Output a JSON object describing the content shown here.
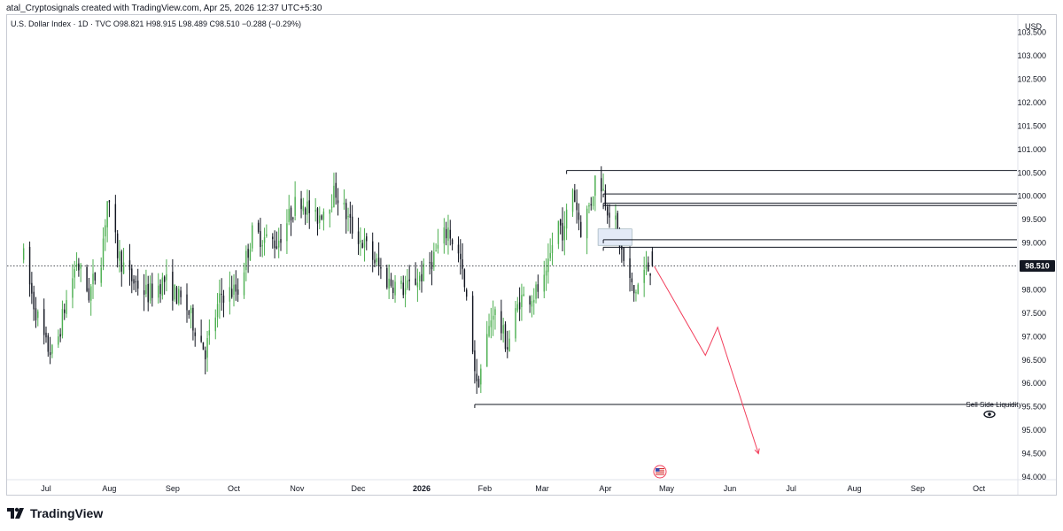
{
  "header": {
    "attribution": "atal_Cryptosignals created with TradingView.com, Apr 25, 2026 12:37 UTC+5:30"
  },
  "legend": {
    "text": "U.S. Dollar Index · 1D · TVC  O98.821  H98.915  L98.489  C98.510  −0.288 (−0.29%)"
  },
  "price_axis": {
    "currency": "USD",
    "last_price_label": "98.510"
  },
  "colors": {
    "up": "#4caf50",
    "down": "#131722",
    "level_line": "#131722",
    "projection": "#f23f5c",
    "zone_fill": "#e3eaf7",
    "last_price_bg": "#131722"
  },
  "annotations": {
    "sell_side_liquidity": "Sell Side Liquidity"
  },
  "brand": {
    "name": "TradingView"
  },
  "chart_data": {
    "type": "candlestick",
    "title": "U.S. Dollar Index · 1D · TVC",
    "ylim": [
      94.0,
      104.0
    ],
    "y_ticks": [
      "94.000",
      "94.500",
      "95.000",
      "95.500",
      "96.000",
      "96.500",
      "97.000",
      "97.500",
      "98.000",
      "98.500",
      "99.000",
      "99.500",
      "100.000",
      "100.500",
      "101.000",
      "101.500",
      "102.000",
      "102.500",
      "103.000",
      "103.500"
    ],
    "x_ticks": [
      "Jul",
      "Aug",
      "Sep",
      "Oct",
      "Nov",
      "Dec",
      "2026",
      "Feb",
      "Mar",
      "Apr",
      "May",
      "Jun",
      "Jul",
      "Aug",
      "Sep",
      "Oct"
    ],
    "ohlc_last": {
      "open": 98.821,
      "high": 98.915,
      "low": 98.489,
      "close": 98.51,
      "change": -0.288,
      "change_pct": -0.29
    },
    "close_path": [
      {
        "date": "Jun 20",
        "close": 98.7
      },
      {
        "date": "Jun 25",
        "close": 97.7
      },
      {
        "date": "Jul 1",
        "close": 96.8
      },
      {
        "date": "Jul 5",
        "close": 96.6
      },
      {
        "date": "Jul 10",
        "close": 97.6
      },
      {
        "date": "Jul 16",
        "close": 98.6
      },
      {
        "date": "Jul 22",
        "close": 97.9
      },
      {
        "date": "Jul 28",
        "close": 98.7
      },
      {
        "date": "Jul 31",
        "close": 99.9
      },
      {
        "date": "Aug 5",
        "close": 98.8
      },
      {
        "date": "Aug 10",
        "close": 98.3
      },
      {
        "date": "Aug 20",
        "close": 97.9
      },
      {
        "date": "Aug 28",
        "close": 98.2
      },
      {
        "date": "Sep 8",
        "close": 97.6
      },
      {
        "date": "Sep 17",
        "close": 96.7
      },
      {
        "date": "Sep 25",
        "close": 97.9
      },
      {
        "date": "Oct 3",
        "close": 98.0
      },
      {
        "date": "Oct 10",
        "close": 99.2
      },
      {
        "date": "Oct 22",
        "close": 99.0
      },
      {
        "date": "Nov 2",
        "close": 100.0
      },
      {
        "date": "Nov 10",
        "close": 99.5
      },
      {
        "date": "Nov 20",
        "close": 100.1
      },
      {
        "date": "Nov 28",
        "close": 99.3
      },
      {
        "date": "Dec 5",
        "close": 98.9
      },
      {
        "date": "Dec 15",
        "close": 98.2
      },
      {
        "date": "Dec 24",
        "close": 98.0
      },
      {
        "date": "Jan 3",
        "close": 98.4
      },
      {
        "date": "Jan 14",
        "close": 99.3
      },
      {
        "date": "Jan 20",
        "close": 98.6
      },
      {
        "date": "Jan 26",
        "close": 96.8
      },
      {
        "date": "Jan 28",
        "close": 95.9
      },
      {
        "date": "Feb 5",
        "close": 97.6
      },
      {
        "date": "Feb 12",
        "close": 96.8
      },
      {
        "date": "Feb 18",
        "close": 97.8
      },
      {
        "date": "Feb 25",
        "close": 97.9
      },
      {
        "date": "Mar 3",
        "close": 98.2
      },
      {
        "date": "Mar 8",
        "close": 99.5
      },
      {
        "date": "Mar 12",
        "close": 99.2
      },
      {
        "date": "Mar 15",
        "close": 100.4
      },
      {
        "date": "Mar 20",
        "close": 99.3
      },
      {
        "date": "Mar 25",
        "close": 99.9
      },
      {
        "date": "Mar 28",
        "close": 100.6
      },
      {
        "date": "Apr 2",
        "close": 99.8
      },
      {
        "date": "Apr 6",
        "close": 99.4
      },
      {
        "date": "Apr 10",
        "close": 98.6
      },
      {
        "date": "Apr 15",
        "close": 97.9
      },
      {
        "date": "Apr 20",
        "close": 98.4
      },
      {
        "date": "Apr 24",
        "close": 98.51
      }
    ],
    "horizontal_levels": [
      {
        "price": 100.55,
        "from": "Mar 13"
      },
      {
        "price": 100.05,
        "from": "Mar 31"
      },
      {
        "price": 99.85,
        "from": "Mar 31"
      },
      {
        "price": 99.8,
        "from": "Mar 31"
      },
      {
        "price": 99.07,
        "from": "Mar 31"
      },
      {
        "price": 98.91,
        "from": "Mar 31"
      },
      {
        "price": 95.55,
        "from": "Jan 27",
        "label": "Sell Side Liquidity"
      }
    ],
    "projection_path": [
      {
        "date": "Apr 25",
        "price": 98.5
      },
      {
        "date": "May 20",
        "price": 96.6
      },
      {
        "date": "May 26",
        "price": 97.2
      },
      {
        "date": "Jun 15",
        "price": 94.5
      }
    ]
  }
}
